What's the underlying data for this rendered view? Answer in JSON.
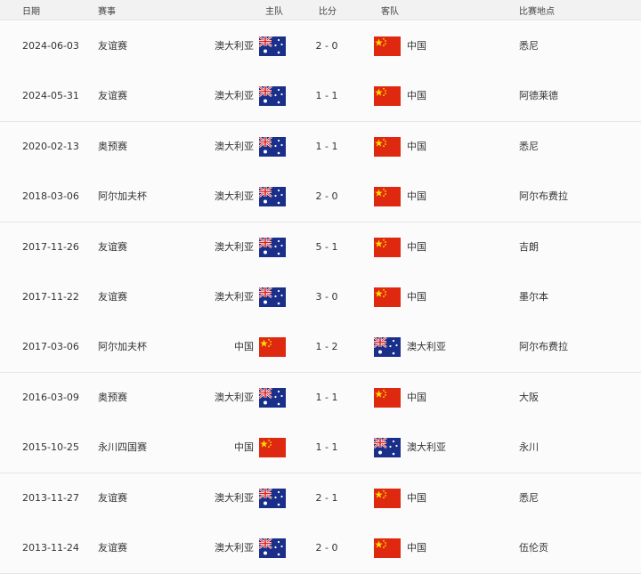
{
  "table": {
    "header": [
      "日期",
      "赛事",
      "主队",
      "比分",
      "客队",
      "比赛地点"
    ],
    "rows": [
      [
        "2024-06-03",
        "友谊赛",
        "澳大利亚",
        "2 - 0",
        "中国",
        "悉尼"
      ],
      [
        "2024-05-31",
        "友谊赛",
        "澳大利亚",
        "1 - 1",
        "中国",
        "阿德莱德"
      ],
      [
        "2020-02-13",
        "奥预赛",
        "澳大利亚",
        "1 - 1",
        "中国",
        "悉尼"
      ],
      [
        "2018-03-06",
        "阿尔加夫杯",
        "澳大利亚",
        "2 - 0",
        "中国",
        "阿尔布费拉"
      ],
      [
        "2017-11-26",
        "友谊赛",
        "澳大利亚",
        "5 - 1",
        "中国",
        "吉朗"
      ],
      [
        "2017-11-22",
        "友谊赛",
        "澳大利亚",
        "3 - 0",
        "中国",
        "墨尔本"
      ],
      [
        "2017-03-06",
        "阿尔加夫杯",
        "中国",
        "1 - 2",
        "澳大利亚",
        "阿尔布费拉"
      ],
      [
        "2016-03-09",
        "奥预赛",
        "澳大利亚",
        "1 - 1",
        "中国",
        "大阪"
      ],
      [
        "2015-10-25",
        "永川四国赛",
        "中国",
        "1 - 1",
        "澳大利亚",
        "永川"
      ],
      [
        "2013-11-27",
        "友谊赛",
        "澳大利亚",
        "2 - 1",
        "中国",
        "悉尼"
      ],
      [
        "2013-11-24",
        "友谊赛",
        "澳大利亚",
        "2 - 0",
        "中国",
        "伍伦贡"
      ]
    ]
  }
}
